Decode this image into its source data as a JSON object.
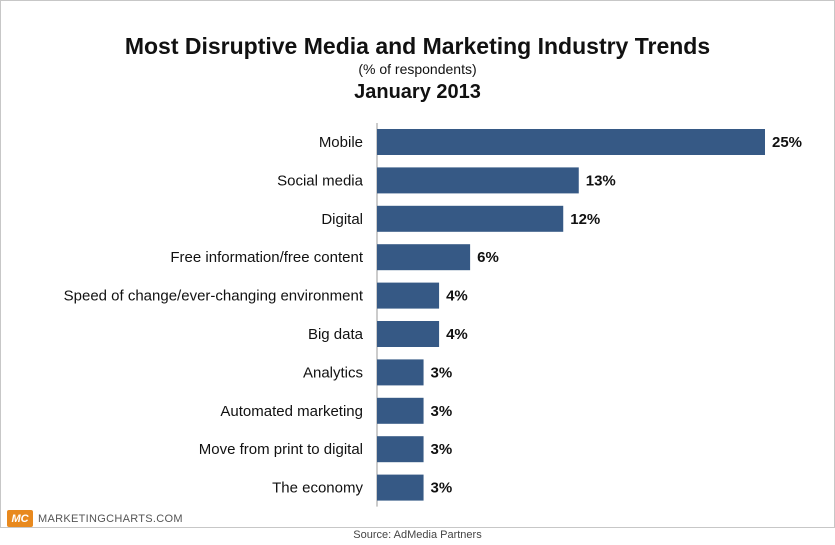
{
  "chart_data": {
    "type": "bar",
    "orientation": "horizontal",
    "title": "Most Disruptive Media and Marketing Industry Trends",
    "subtitle": "(% of respondents)",
    "subtitle2": "January 2013",
    "categories": [
      "Mobile",
      "Social media",
      "Digital",
      "Free information/free content",
      "Speed of change/ever-changing environment",
      "Big data",
      "Analytics",
      "Automated marketing",
      "Move from print to digital",
      "The economy"
    ],
    "values": [
      25,
      13,
      12,
      6,
      4,
      4,
      3,
      3,
      3,
      3
    ],
    "value_labels": [
      "25%",
      "13%",
      "12%",
      "6%",
      "4%",
      "4%",
      "3%",
      "3%",
      "3%",
      "3%"
    ],
    "xlim": [
      0,
      25
    ],
    "grid": false,
    "bar_color": "#365985"
  },
  "branding": {
    "logo_mark": "MC",
    "logo_text": "MARKETINGCHARTS.COM",
    "logo_color": "#e8891e"
  },
  "source": "Source: AdMedia Partners"
}
